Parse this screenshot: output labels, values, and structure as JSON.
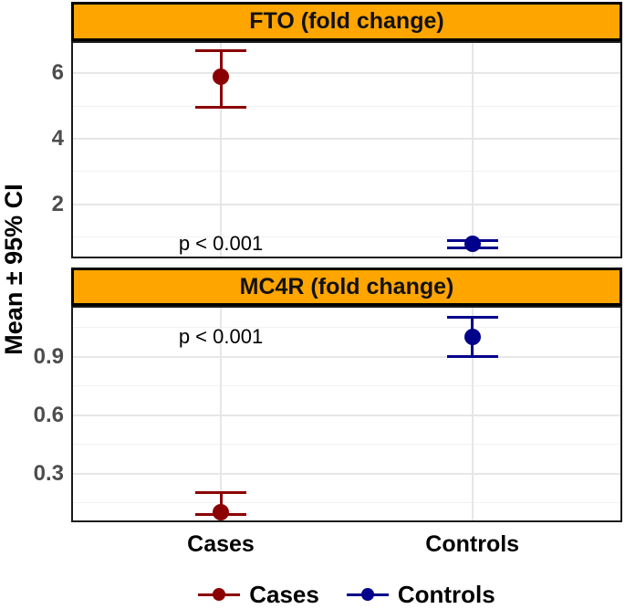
{
  "figure": {
    "y_axis_title": "Mean ± 95% CI",
    "x_axis_categories": [
      "Cases",
      "Controls"
    ],
    "colors": {
      "strip_bg": "#FFA500",
      "strip_border": "#000000",
      "cases": "#8B0000",
      "controls": "#00008B",
      "tick_label": "#4D4D4D",
      "grid_major": "#E6E6E6",
      "grid_minor": "#F1F1F1"
    },
    "legend": {
      "position": "bottom-center",
      "items": [
        {
          "label": "Cases",
          "color": "#8B0000"
        },
        {
          "label": "Controls",
          "color": "#00008B"
        }
      ]
    }
  },
  "chart_data": [
    {
      "type": "scatter",
      "subtype": "point-with-95CI-errorbar",
      "facet_title": "FTO (fold change)",
      "categories": [
        "Cases",
        "Controls"
      ],
      "series": [
        {
          "name": "Cases",
          "color": "#8B0000",
          "mean": 5.9,
          "ci_low": 4.95,
          "ci_high": 6.7
        },
        {
          "name": "Controls",
          "color": "#00008B",
          "mean": 0.79,
          "ci_low": 0.66,
          "ci_high": 0.89
        }
      ],
      "annotation": {
        "text": "p < 0.001",
        "x_category": "Cases",
        "y_value": 0.79
      },
      "ylabel": "Mean ± 95% CI",
      "y_ticks_major": [
        2,
        4,
        6
      ],
      "y_ticks_minor": [
        1,
        3,
        5
      ],
      "ylim": [
        0.35,
        6.98
      ],
      "grid": true
    },
    {
      "type": "scatter",
      "subtype": "point-with-95CI-errorbar",
      "facet_title": "MC4R (fold change)",
      "categories": [
        "Cases",
        "Controls"
      ],
      "series": [
        {
          "name": "Cases",
          "color": "#8B0000",
          "mean": 0.1,
          "ci_low": 0.09,
          "ci_high": 0.2
        },
        {
          "name": "Controls",
          "color": "#00008B",
          "mean": 1.0,
          "ci_low": 0.9,
          "ci_high": 1.1
        }
      ],
      "annotation": {
        "text": "p < 0.001",
        "x_category": "Cases",
        "y_value": 1.0
      },
      "ylabel": "Mean ± 95% CI",
      "y_ticks_major": [
        0.3,
        0.6,
        0.9
      ],
      "y_ticks_minor": [
        0.15,
        0.45,
        0.75,
        1.05
      ],
      "ylim": [
        0.05,
        1.16
      ],
      "grid": true
    }
  ]
}
